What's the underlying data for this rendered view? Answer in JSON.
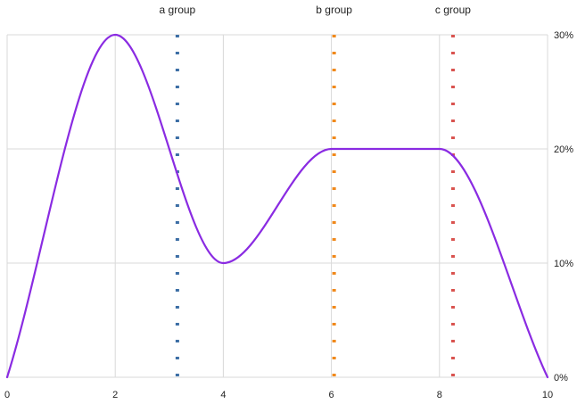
{
  "chart_data": {
    "type": "line",
    "title": "",
    "xlabel": "",
    "ylabel": "",
    "xlim": [
      0,
      10
    ],
    "ylim": [
      0,
      30
    ],
    "x_ticks": [
      "0",
      "2",
      "4",
      "6",
      "8",
      "10"
    ],
    "x_tick_values": [
      0,
      2,
      4,
      6,
      8,
      10
    ],
    "y_ticks": [
      "0%",
      "10%",
      "20%",
      "30%"
    ],
    "y_tick_values": [
      0,
      10,
      20,
      30
    ],
    "y_axis_side": "right",
    "grid": true,
    "series": [
      {
        "color": "#8a2be2",
        "smooth": true,
        "x": [
          0,
          2,
          4,
          6,
          8,
          10
        ],
        "y": [
          0,
          30,
          10,
          20,
          20,
          0
        ]
      }
    ],
    "vertical_markers": [
      {
        "label": "a group",
        "x": 3.15,
        "color": "#3c6ea5"
      },
      {
        "label": "b group",
        "x": 6.05,
        "color": "#f0891b"
      },
      {
        "label": "c group",
        "x": 8.25,
        "color": "#d9534f"
      }
    ]
  }
}
